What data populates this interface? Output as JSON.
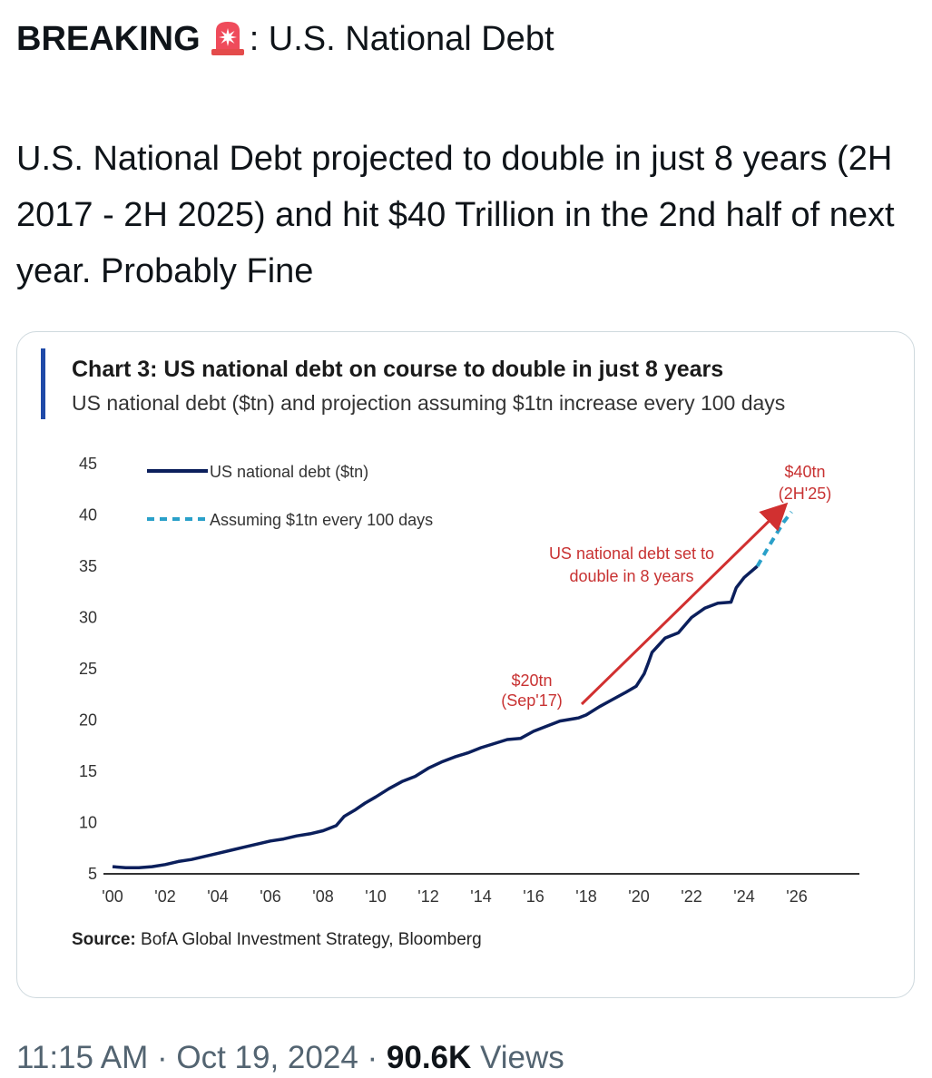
{
  "tweet": {
    "headline_prefix": "BREAKING",
    "headline_suffix": ": U.S. National Debt",
    "siren_icon": "police-car-light-emoji",
    "body": "U.S. National Debt projected to double in just 8 years (2H 2017 - 2H 2025) and hit $40 Trillion in the 2nd half of next year.  Probably Fine",
    "timestamp": "11:15 AM · Oct 19, 2024 · ",
    "views_count": "90.6K",
    "views_label": " Views"
  },
  "colors": {
    "accent_bar": "#1f4aa8",
    "debt_line": "#0b1f5c",
    "projection_line": "#2aa0c9",
    "arrow": "#d13030",
    "annotation_text": "#c83232"
  },
  "chart_data": {
    "type": "line",
    "title": "Chart 3: US national debt on course to double in just 8 years",
    "subtitle": "US national debt ($tn) and projection assuming $1tn increase every 100 days",
    "source_label": "Source:",
    "source_text": " BofA Global Investment Strategy, Bloomberg",
    "ylim": [
      5,
      45
    ],
    "xlim": [
      2000,
      2027
    ],
    "y_ticks": [
      "45",
      "40",
      "35",
      "30",
      "25",
      "20",
      "15",
      "10",
      "5"
    ],
    "x_ticks": [
      "'00",
      "'02",
      "'04",
      "'06",
      "'08",
      "'10",
      "'12",
      "'14",
      "'16",
      "'18",
      "'20",
      "'22",
      "'24",
      "'26"
    ],
    "legend_position": "top-left",
    "grid": false,
    "series": [
      {
        "name": "US national debt ($tn)",
        "style": "solid",
        "points": [
          [
            2000,
            5.7
          ],
          [
            2000.5,
            5.6
          ],
          [
            2001,
            5.6
          ],
          [
            2001.5,
            5.7
          ],
          [
            2002,
            5.9
          ],
          [
            2002.5,
            6.2
          ],
          [
            2003,
            6.4
          ],
          [
            2003.5,
            6.7
          ],
          [
            2004,
            7.0
          ],
          [
            2004.5,
            7.3
          ],
          [
            2005,
            7.6
          ],
          [
            2005.5,
            7.9
          ],
          [
            2006,
            8.2
          ],
          [
            2006.5,
            8.4
          ],
          [
            2007,
            8.7
          ],
          [
            2007.5,
            8.9
          ],
          [
            2008,
            9.2
          ],
          [
            2008.5,
            9.7
          ],
          [
            2008.8,
            10.6
          ],
          [
            2009.2,
            11.2
          ],
          [
            2009.6,
            11.9
          ],
          [
            2010,
            12.5
          ],
          [
            2010.5,
            13.3
          ],
          [
            2011,
            14.0
          ],
          [
            2011.5,
            14.5
          ],
          [
            2012,
            15.3
          ],
          [
            2012.5,
            15.9
          ],
          [
            2013,
            16.4
          ],
          [
            2013.5,
            16.8
          ],
          [
            2014,
            17.3
          ],
          [
            2014.5,
            17.7
          ],
          [
            2015,
            18.1
          ],
          [
            2015.5,
            18.2
          ],
          [
            2016,
            18.9
          ],
          [
            2016.5,
            19.4
          ],
          [
            2017,
            19.9
          ],
          [
            2017.7,
            20.2
          ],
          [
            2018,
            20.5
          ],
          [
            2018.5,
            21.3
          ],
          [
            2019,
            22.0
          ],
          [
            2019.5,
            22.7
          ],
          [
            2019.9,
            23.3
          ],
          [
            2020.2,
            24.5
          ],
          [
            2020.35,
            25.5
          ],
          [
            2020.5,
            26.6
          ],
          [
            2021,
            28.0
          ],
          [
            2021.5,
            28.5
          ],
          [
            2022,
            30.0
          ],
          [
            2022.5,
            30.9
          ],
          [
            2023,
            31.4
          ],
          [
            2023.5,
            31.5
          ],
          [
            2023.7,
            32.9
          ],
          [
            2024,
            33.9
          ],
          [
            2024.5,
            35.0
          ]
        ]
      },
      {
        "name": "Assuming $1tn every 100 days",
        "style": "dashed",
        "points": [
          [
            2024.5,
            35.0
          ],
          [
            2025.0,
            37.2
          ],
          [
            2025.5,
            39.3
          ],
          [
            2025.8,
            40.3
          ]
        ]
      }
    ],
    "annotations": [
      {
        "lines": [
          "$20tn",
          "(Sep'17)"
        ],
        "x": 2017.7,
        "y": 20.2
      },
      {
        "lines": [
          "US national debt set to",
          "double in 8 years"
        ]
      },
      {
        "lines": [
          "$40tn",
          "(2H'25)"
        ],
        "x": 2025.8,
        "y": 40.0
      }
    ]
  }
}
